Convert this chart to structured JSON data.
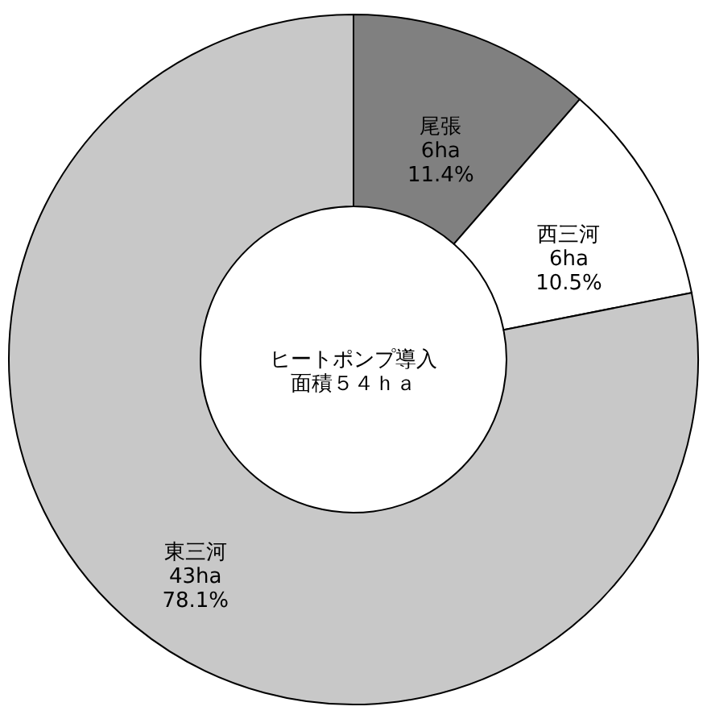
{
  "chart_data": {
    "type": "donut",
    "title": "ヒートポンプ導入",
    "subtitle": "面積５４ｈａ",
    "categories": [
      "尾張",
      "西三河",
      "東三河"
    ],
    "values": [
      11.4,
      10.5,
      78.1
    ],
    "value_labels": [
      "11.4%",
      "10.5%",
      "78.1%"
    ],
    "annotations": [
      "6ha",
      "6ha",
      "43ha"
    ],
    "colors": [
      "#808080",
      "#ffffff",
      "#c8c8c8"
    ],
    "legend": false
  }
}
